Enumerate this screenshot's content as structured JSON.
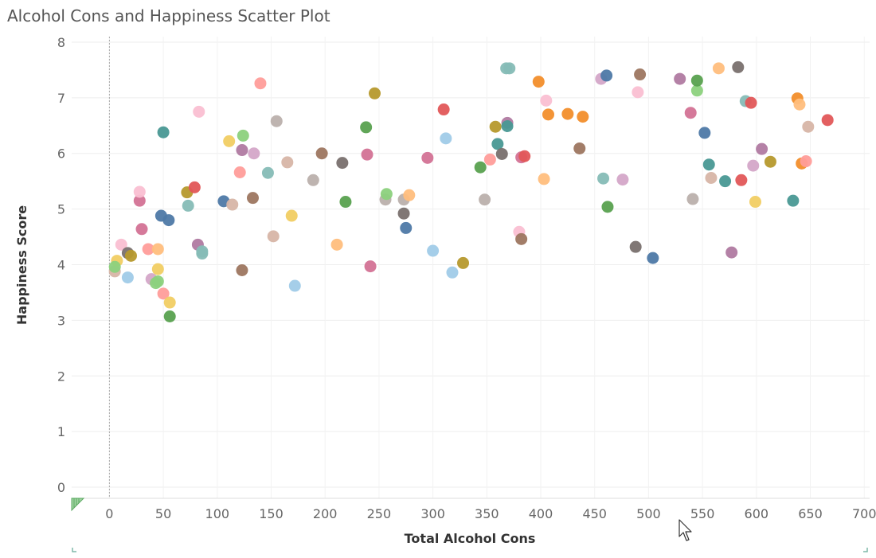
{
  "chart_data": {
    "type": "scatter",
    "title": "Alcohol Cons and Happiness Scatter Plot",
    "xlabel": "Total Alcohol Cons",
    "ylabel": "Happiness Score",
    "xlim": [
      -35,
      705
    ],
    "ylim": [
      -0.2,
      8.1
    ],
    "x_ticks": [
      0,
      50,
      100,
      150,
      200,
      250,
      300,
      350,
      400,
      450,
      500,
      550,
      600,
      650,
      700
    ],
    "y_ticks": [
      0,
      1,
      2,
      3,
      4,
      5,
      6,
      7,
      8
    ],
    "grid": true,
    "legend": "none",
    "colors": {
      "blue": "#4e79a7",
      "orange": "#f28e2b",
      "red": "#e15759",
      "teal": "#499894",
      "green": "#59a14f",
      "olive": "#b6992d",
      "mustard": "#f1ce63",
      "brown": "#9d7660",
      "grey": "#bab0ac",
      "pink": "#fabfd2",
      "salmon": "#ff9d9a",
      "lightblue": "#a0cbe8",
      "purple": "#b07aa1",
      "magenta": "#d37295",
      "lilac": "#d4a6c8",
      "tan": "#d7b5a6",
      "darkgrey": "#79706e",
      "peach": "#ffbe7d",
      "lightgreen": "#8cd17d",
      "aqua": "#86bcb6"
    },
    "points": [
      {
        "x": 5,
        "y": 3.88,
        "c": "tan"
      },
      {
        "x": 7,
        "y": 4.07,
        "c": "mustard"
      },
      {
        "x": 5,
        "y": 3.96,
        "c": "lightgreen"
      },
      {
        "x": 11,
        "y": 4.36,
        "c": "pink"
      },
      {
        "x": 17,
        "y": 3.77,
        "c": "lightblue"
      },
      {
        "x": 17,
        "y": 4.21,
        "c": "darkgrey"
      },
      {
        "x": 20,
        "y": 4.16,
        "c": "olive"
      },
      {
        "x": 28,
        "y": 5.15,
        "c": "magenta"
      },
      {
        "x": 28,
        "y": 5.31,
        "c": "pink"
      },
      {
        "x": 30,
        "y": 4.64,
        "c": "magenta"
      },
      {
        "x": 36,
        "y": 4.28,
        "c": "salmon"
      },
      {
        "x": 39,
        "y": 3.74,
        "c": "lilac"
      },
      {
        "x": 43,
        "y": 3.67,
        "c": "lightgreen"
      },
      {
        "x": 45,
        "y": 3.7,
        "c": "lightgreen"
      },
      {
        "x": 45,
        "y": 3.92,
        "c": "mustard"
      },
      {
        "x": 45,
        "y": 4.28,
        "c": "peach"
      },
      {
        "x": 48,
        "y": 4.88,
        "c": "blue"
      },
      {
        "x": 50,
        "y": 3.48,
        "c": "salmon"
      },
      {
        "x": 50,
        "y": 6.38,
        "c": "teal"
      },
      {
        "x": 55,
        "y": 4.8,
        "c": "blue"
      },
      {
        "x": 56,
        "y": 3.32,
        "c": "mustard"
      },
      {
        "x": 56,
        "y": 3.07,
        "c": "green"
      },
      {
        "x": 72,
        "y": 5.3,
        "c": "olive"
      },
      {
        "x": 73,
        "y": 5.06,
        "c": "aqua"
      },
      {
        "x": 79,
        "y": 5.39,
        "c": "red"
      },
      {
        "x": 82,
        "y": 4.36,
        "c": "purple"
      },
      {
        "x": 83,
        "y": 6.75,
        "c": "pink"
      },
      {
        "x": 86,
        "y": 4.2,
        "c": "aqua"
      },
      {
        "x": 86,
        "y": 4.24,
        "c": "aqua"
      },
      {
        "x": 106,
        "y": 5.14,
        "c": "blue"
      },
      {
        "x": 111,
        "y": 6.22,
        "c": "mustard"
      },
      {
        "x": 114,
        "y": 5.08,
        "c": "tan"
      },
      {
        "x": 121,
        "y": 5.66,
        "c": "salmon"
      },
      {
        "x": 123,
        "y": 6.06,
        "c": "purple"
      },
      {
        "x": 124,
        "y": 6.32,
        "c": "lightgreen"
      },
      {
        "x": 123,
        "y": 3.9,
        "c": "brown"
      },
      {
        "x": 133,
        "y": 5.2,
        "c": "brown"
      },
      {
        "x": 134,
        "y": 6.0,
        "c": "lilac"
      },
      {
        "x": 140,
        "y": 7.26,
        "c": "salmon"
      },
      {
        "x": 147,
        "y": 5.65,
        "c": "aqua"
      },
      {
        "x": 152,
        "y": 4.51,
        "c": "tan"
      },
      {
        "x": 155,
        "y": 6.58,
        "c": "grey"
      },
      {
        "x": 165,
        "y": 5.84,
        "c": "tan"
      },
      {
        "x": 169,
        "y": 4.88,
        "c": "mustard"
      },
      {
        "x": 172,
        "y": 3.62,
        "c": "lightblue"
      },
      {
        "x": 189,
        "y": 5.52,
        "c": "grey"
      },
      {
        "x": 197,
        "y": 6.0,
        "c": "brown"
      },
      {
        "x": 211,
        "y": 4.36,
        "c": "peach"
      },
      {
        "x": 216,
        "y": 5.83,
        "c": "darkgrey"
      },
      {
        "x": 219,
        "y": 5.13,
        "c": "green"
      },
      {
        "x": 238,
        "y": 6.47,
        "c": "green"
      },
      {
        "x": 239,
        "y": 5.98,
        "c": "magenta"
      },
      {
        "x": 242,
        "y": 3.97,
        "c": "magenta"
      },
      {
        "x": 246,
        "y": 7.08,
        "c": "olive"
      },
      {
        "x": 256,
        "y": 5.17,
        "c": "grey"
      },
      {
        "x": 257,
        "y": 5.27,
        "c": "lightgreen"
      },
      {
        "x": 273,
        "y": 5.17,
        "c": "grey"
      },
      {
        "x": 273,
        "y": 4.92,
        "c": "darkgrey"
      },
      {
        "x": 275,
        "y": 4.66,
        "c": "blue"
      },
      {
        "x": 278,
        "y": 5.25,
        "c": "peach"
      },
      {
        "x": 295,
        "y": 5.92,
        "c": "magenta"
      },
      {
        "x": 300,
        "y": 4.25,
        "c": "lightblue"
      },
      {
        "x": 310,
        "y": 6.79,
        "c": "red"
      },
      {
        "x": 312,
        "y": 6.27,
        "c": "lightblue"
      },
      {
        "x": 318,
        "y": 3.86,
        "c": "lightblue"
      },
      {
        "x": 328,
        "y": 4.03,
        "c": "olive"
      },
      {
        "x": 344,
        "y": 5.75,
        "c": "green"
      },
      {
        "x": 348,
        "y": 5.17,
        "c": "grey"
      },
      {
        "x": 353,
        "y": 5.89,
        "c": "salmon"
      },
      {
        "x": 358,
        "y": 6.48,
        "c": "olive"
      },
      {
        "x": 360,
        "y": 6.17,
        "c": "teal"
      },
      {
        "x": 364,
        "y": 5.99,
        "c": "darkgrey"
      },
      {
        "x": 368,
        "y": 7.53,
        "c": "aqua"
      },
      {
        "x": 371,
        "y": 7.53,
        "c": "aqua"
      },
      {
        "x": 369,
        "y": 6.55,
        "c": "purple"
      },
      {
        "x": 369,
        "y": 6.49,
        "c": "teal"
      },
      {
        "x": 380,
        "y": 4.59,
        "c": "pink"
      },
      {
        "x": 382,
        "y": 4.46,
        "c": "brown"
      },
      {
        "x": 382,
        "y": 5.93,
        "c": "magenta"
      },
      {
        "x": 385,
        "y": 5.95,
        "c": "red"
      },
      {
        "x": 398,
        "y": 7.29,
        "c": "orange"
      },
      {
        "x": 403,
        "y": 5.54,
        "c": "peach"
      },
      {
        "x": 405,
        "y": 6.95,
        "c": "pink"
      },
      {
        "x": 407,
        "y": 6.7,
        "c": "orange"
      },
      {
        "x": 425,
        "y": 6.71,
        "c": "orange"
      },
      {
        "x": 436,
        "y": 6.09,
        "c": "brown"
      },
      {
        "x": 439,
        "y": 6.66,
        "c": "orange"
      },
      {
        "x": 456,
        "y": 7.34,
        "c": "lilac"
      },
      {
        "x": 458,
        "y": 5.55,
        "c": "aqua"
      },
      {
        "x": 461,
        "y": 7.4,
        "c": "blue"
      },
      {
        "x": 462,
        "y": 5.04,
        "c": "green"
      },
      {
        "x": 476,
        "y": 5.53,
        "c": "lilac"
      },
      {
        "x": 488,
        "y": 4.32,
        "c": "darkgrey"
      },
      {
        "x": 490,
        "y": 7.1,
        "c": "pink"
      },
      {
        "x": 492,
        "y": 7.42,
        "c": "brown"
      },
      {
        "x": 504,
        "y": 4.12,
        "c": "blue"
      },
      {
        "x": 529,
        "y": 7.34,
        "c": "purple"
      },
      {
        "x": 539,
        "y": 6.73,
        "c": "magenta"
      },
      {
        "x": 541,
        "y": 5.18,
        "c": "grey"
      },
      {
        "x": 545,
        "y": 7.13,
        "c": "lightgreen"
      },
      {
        "x": 545,
        "y": 7.31,
        "c": "green"
      },
      {
        "x": 552,
        "y": 6.37,
        "c": "blue"
      },
      {
        "x": 556,
        "y": 5.8,
        "c": "teal"
      },
      {
        "x": 558,
        "y": 5.56,
        "c": "tan"
      },
      {
        "x": 565,
        "y": 7.53,
        "c": "peach"
      },
      {
        "x": 571,
        "y": 5.5,
        "c": "teal"
      },
      {
        "x": 577,
        "y": 4.22,
        "c": "purple"
      },
      {
        "x": 583,
        "y": 7.55,
        "c": "darkgrey"
      },
      {
        "x": 586,
        "y": 5.52,
        "c": "red"
      },
      {
        "x": 590,
        "y": 6.94,
        "c": "aqua"
      },
      {
        "x": 595,
        "y": 6.91,
        "c": "red"
      },
      {
        "x": 597,
        "y": 5.78,
        "c": "lilac"
      },
      {
        "x": 599,
        "y": 5.13,
        "c": "mustard"
      },
      {
        "x": 605,
        "y": 6.08,
        "c": "purple"
      },
      {
        "x": 613,
        "y": 5.85,
        "c": "olive"
      },
      {
        "x": 634,
        "y": 5.15,
        "c": "teal"
      },
      {
        "x": 638,
        "y": 6.99,
        "c": "orange"
      },
      {
        "x": 640,
        "y": 6.88,
        "c": "peach"
      },
      {
        "x": 642,
        "y": 5.82,
        "c": "orange"
      },
      {
        "x": 646,
        "y": 5.86,
        "c": "salmon"
      },
      {
        "x": 648,
        "y": 6.48,
        "c": "tan"
      },
      {
        "x": 666,
        "y": 6.6,
        "c": "red"
      }
    ]
  }
}
